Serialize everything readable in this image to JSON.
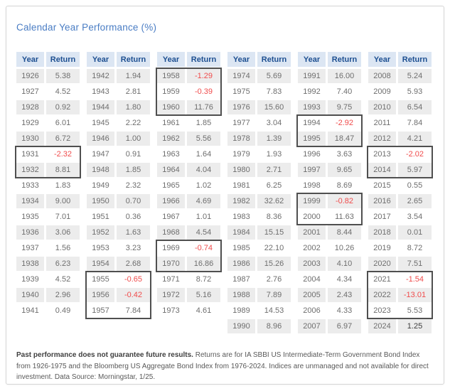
{
  "title": "Calendar Year Performance (%)",
  "chart_data": {
    "type": "table",
    "title": "Calendar Year Performance (%)",
    "column_headers": [
      "Year",
      "Return"
    ],
    "legend": "negative returns shown in red; outlined boxes mark consecutive-loss periods",
    "column_groups": [
      {
        "rows": [
          [
            "1926",
            "5.38"
          ],
          [
            "1927",
            "4.52"
          ],
          [
            "1928",
            "0.92"
          ],
          [
            "1929",
            "6.01"
          ],
          [
            "1930",
            "6.72"
          ],
          [
            "1931",
            "-2.32"
          ],
          [
            "1932",
            "8.81"
          ],
          [
            "1933",
            "1.83"
          ],
          [
            "1934",
            "9.00"
          ],
          [
            "1935",
            "7.01"
          ],
          [
            "1936",
            "3.06"
          ],
          [
            "1937",
            "1.56"
          ],
          [
            "1938",
            "6.23"
          ],
          [
            "1939",
            "4.52"
          ],
          [
            "1940",
            "2.96"
          ],
          [
            "1941",
            "0.49"
          ]
        ]
      },
      {
        "rows": [
          [
            "1942",
            "1.94"
          ],
          [
            "1943",
            "2.81"
          ],
          [
            "1944",
            "1.80"
          ],
          [
            "1945",
            "2.22"
          ],
          [
            "1946",
            "1.00"
          ],
          [
            "1947",
            "0.91"
          ],
          [
            "1948",
            "1.85"
          ],
          [
            "1949",
            "2.32"
          ],
          [
            "1950",
            "0.70"
          ],
          [
            "1951",
            "0.36"
          ],
          [
            "1952",
            "1.63"
          ],
          [
            "1953",
            "3.23"
          ],
          [
            "1954",
            "2.68"
          ],
          [
            "1955",
            "-0.65"
          ],
          [
            "1956",
            "-0.42"
          ],
          [
            "1957",
            "7.84"
          ]
        ]
      },
      {
        "rows": [
          [
            "1958",
            "-1.29"
          ],
          [
            "1959",
            "-0.39"
          ],
          [
            "1960",
            "11.76"
          ],
          [
            "1961",
            "1.85"
          ],
          [
            "1962",
            "5.56"
          ],
          [
            "1963",
            "1.64"
          ],
          [
            "1964",
            "4.04"
          ],
          [
            "1965",
            "1.02"
          ],
          [
            "1966",
            "4.69"
          ],
          [
            "1967",
            "1.01"
          ],
          [
            "1968",
            "4.54"
          ],
          [
            "1969",
            "-0.74"
          ],
          [
            "1970",
            "16.86"
          ],
          [
            "1971",
            "8.72"
          ],
          [
            "1972",
            "5.16"
          ],
          [
            "1973",
            "4.61"
          ]
        ]
      },
      {
        "rows": [
          [
            "1974",
            "5.69"
          ],
          [
            "1975",
            "7.83"
          ],
          [
            "1976",
            "15.60"
          ],
          [
            "1977",
            "3.04"
          ],
          [
            "1978",
            "1.39"
          ],
          [
            "1979",
            "1.93"
          ],
          [
            "1980",
            "2.71"
          ],
          [
            "1981",
            "6.25"
          ],
          [
            "1982",
            "32.62"
          ],
          [
            "1983",
            "8.36"
          ],
          [
            "1984",
            "15.15"
          ],
          [
            "1985",
            "22.10"
          ],
          [
            "1986",
            "15.26"
          ],
          [
            "1987",
            "2.76"
          ],
          [
            "1988",
            "7.89"
          ],
          [
            "1989",
            "14.53"
          ],
          [
            "1990",
            "8.96"
          ]
        ]
      },
      {
        "rows": [
          [
            "1991",
            "16.00"
          ],
          [
            "1992",
            "7.40"
          ],
          [
            "1993",
            "9.75"
          ],
          [
            "1994",
            "-2.92"
          ],
          [
            "1995",
            "18.47"
          ],
          [
            "1996",
            "3.63"
          ],
          [
            "1997",
            "9.65"
          ],
          [
            "1998",
            "8.69"
          ],
          [
            "1999",
            "-0.82"
          ],
          [
            "2000",
            "11.63"
          ],
          [
            "2001",
            "8.44"
          ],
          [
            "2002",
            "10.26"
          ],
          [
            "2003",
            "4.10"
          ],
          [
            "2004",
            "4.34"
          ],
          [
            "2005",
            "2.43"
          ],
          [
            "2006",
            "4.33"
          ],
          [
            "2007",
            "6.97"
          ]
        ]
      },
      {
        "rows": [
          [
            "2008",
            "5.24"
          ],
          [
            "2009",
            "5.93"
          ],
          [
            "2010",
            "6.54"
          ],
          [
            "2011",
            "7.84"
          ],
          [
            "2012",
            "4.21"
          ],
          [
            "2013",
            "-2.02"
          ],
          [
            "2014",
            "5.97"
          ],
          [
            "2015",
            "0.55"
          ],
          [
            "2016",
            "2.65"
          ],
          [
            "2017",
            "3.54"
          ],
          [
            "2018",
            "0.01"
          ],
          [
            "2019",
            "8.72"
          ],
          [
            "2020",
            "7.51"
          ],
          [
            "2021",
            "-1.54"
          ],
          [
            "2022",
            "-13.01"
          ],
          [
            "2023",
            "5.53"
          ],
          [
            "2024",
            "1.25"
          ]
        ]
      }
    ],
    "highlight_boxes": [
      {
        "group": 0,
        "from": "1931",
        "to": "1932"
      },
      {
        "group": 1,
        "from": "1955",
        "to": "1957"
      },
      {
        "group": 2,
        "from": "1958",
        "to": "1960"
      },
      {
        "group": 2,
        "from": "1969",
        "to": "1970"
      },
      {
        "group": 4,
        "from": "1994",
        "to": "1995"
      },
      {
        "group": 4,
        "from": "1999",
        "to": "2000"
      },
      {
        "group": 5,
        "from": "2013",
        "to": "2014"
      },
      {
        "group": 5,
        "from": "2021",
        "to": "2023"
      }
    ],
    "emphasis_years": [
      "2024"
    ]
  },
  "footnote": {
    "bold": "Past performance does not guarantee future results.",
    "text": " Returns are for IA SBBI US Intermediate-Term Government Bond Index from 1926-1975 and the Bloomberg US Aggregate Bond Index from 1976-2024. Indices are unmanaged and not available for direct investment. Data Source: Morningstar, 1/25."
  },
  "colors": {
    "accent_blue": "#4a7dc4",
    "header_text_blue": "#1d4f91",
    "header_bg_blue": "#dce6f3",
    "row_alt_gray": "#ececec",
    "value_gray": "#6e6e6e",
    "negative_red": "#f04c4c",
    "box_border_gray": "#4f4f4f"
  }
}
